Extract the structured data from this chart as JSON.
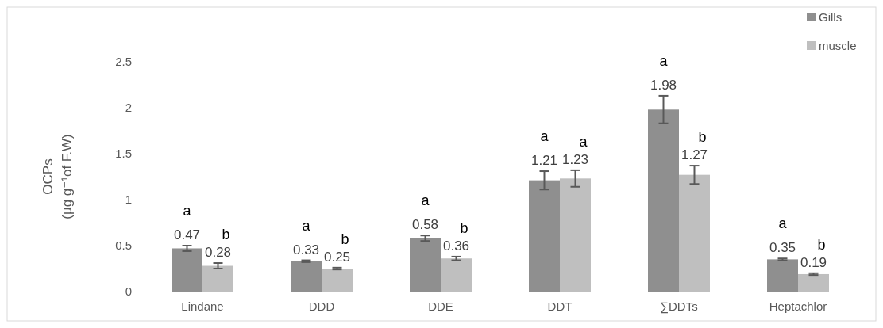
{
  "chart_data": {
    "type": "bar",
    "ylabel": "OCPs\n(µg g⁻¹of F.W)",
    "categories": [
      "Lindane",
      "DDD",
      "DDE",
      "DDT",
      "∑DDTs",
      "Heptachlor"
    ],
    "series": [
      {
        "name": "Gills",
        "color": "#8f8f8f",
        "values": [
          0.47,
          0.33,
          0.58,
          1.21,
          1.98,
          0.35
        ],
        "errors": [
          0.03,
          0.01,
          0.03,
          0.1,
          0.15,
          0.01
        ]
      },
      {
        "name": "muscle",
        "color": "#bfbfbf",
        "values": [
          0.28,
          0.25,
          0.36,
          1.23,
          1.27,
          0.19
        ],
        "errors": [
          0.03,
          0.01,
          0.02,
          0.09,
          0.1,
          0.01
        ]
      }
    ],
    "ylim": [
      0,
      2.5
    ],
    "yticks": [
      0,
      0.5,
      1,
      1.5,
      2,
      2.5
    ],
    "grid": false,
    "legend": "top right",
    "data_labels": true,
    "annotations": [
      "a",
      "b",
      "a",
      "b",
      "a",
      "b",
      "a",
      "a",
      "a",
      "b",
      "a",
      "b"
    ]
  }
}
